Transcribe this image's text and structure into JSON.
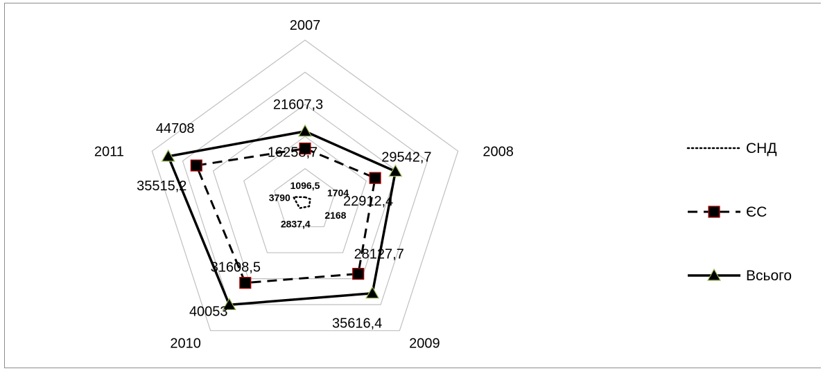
{
  "chart_data": {
    "type": "radar",
    "categories": [
      "2007",
      "2008",
      "2009",
      "2010",
      "2011"
    ],
    "rmax": 50000,
    "gridline_step": 10000,
    "series": [
      {
        "name": "СНД",
        "values": [
          1096.5,
          1704,
          2168,
          2837.4,
          3790
        ],
        "labels": [
          "1096,5",
          "1704",
          "2168",
          "2837,4",
          "3790"
        ],
        "line": "dotted",
        "marker": "none",
        "color": "#000000"
      },
      {
        "name": "ЄС",
        "values": [
          16258.7,
          22912.4,
          28127.7,
          31608.5,
          35515.2
        ],
        "labels": [
          "16258,7",
          "22912,4",
          "28127,7",
          "31608,5",
          "35515,2"
        ],
        "line": "dashed",
        "marker": "square",
        "color": "#000000",
        "marker_border": "#c00000"
      },
      {
        "name": "Всього",
        "values": [
          21607.3,
          29542.7,
          35616.4,
          40053,
          44708
        ],
        "labels": [
          "21607,3",
          "29542,7",
          "35616,4",
          "40053",
          "44708"
        ],
        "line": "solid",
        "marker": "triangle",
        "color": "#000000",
        "marker_border": "#9bbb59"
      }
    ],
    "legend_position": "right",
    "grid": true
  }
}
